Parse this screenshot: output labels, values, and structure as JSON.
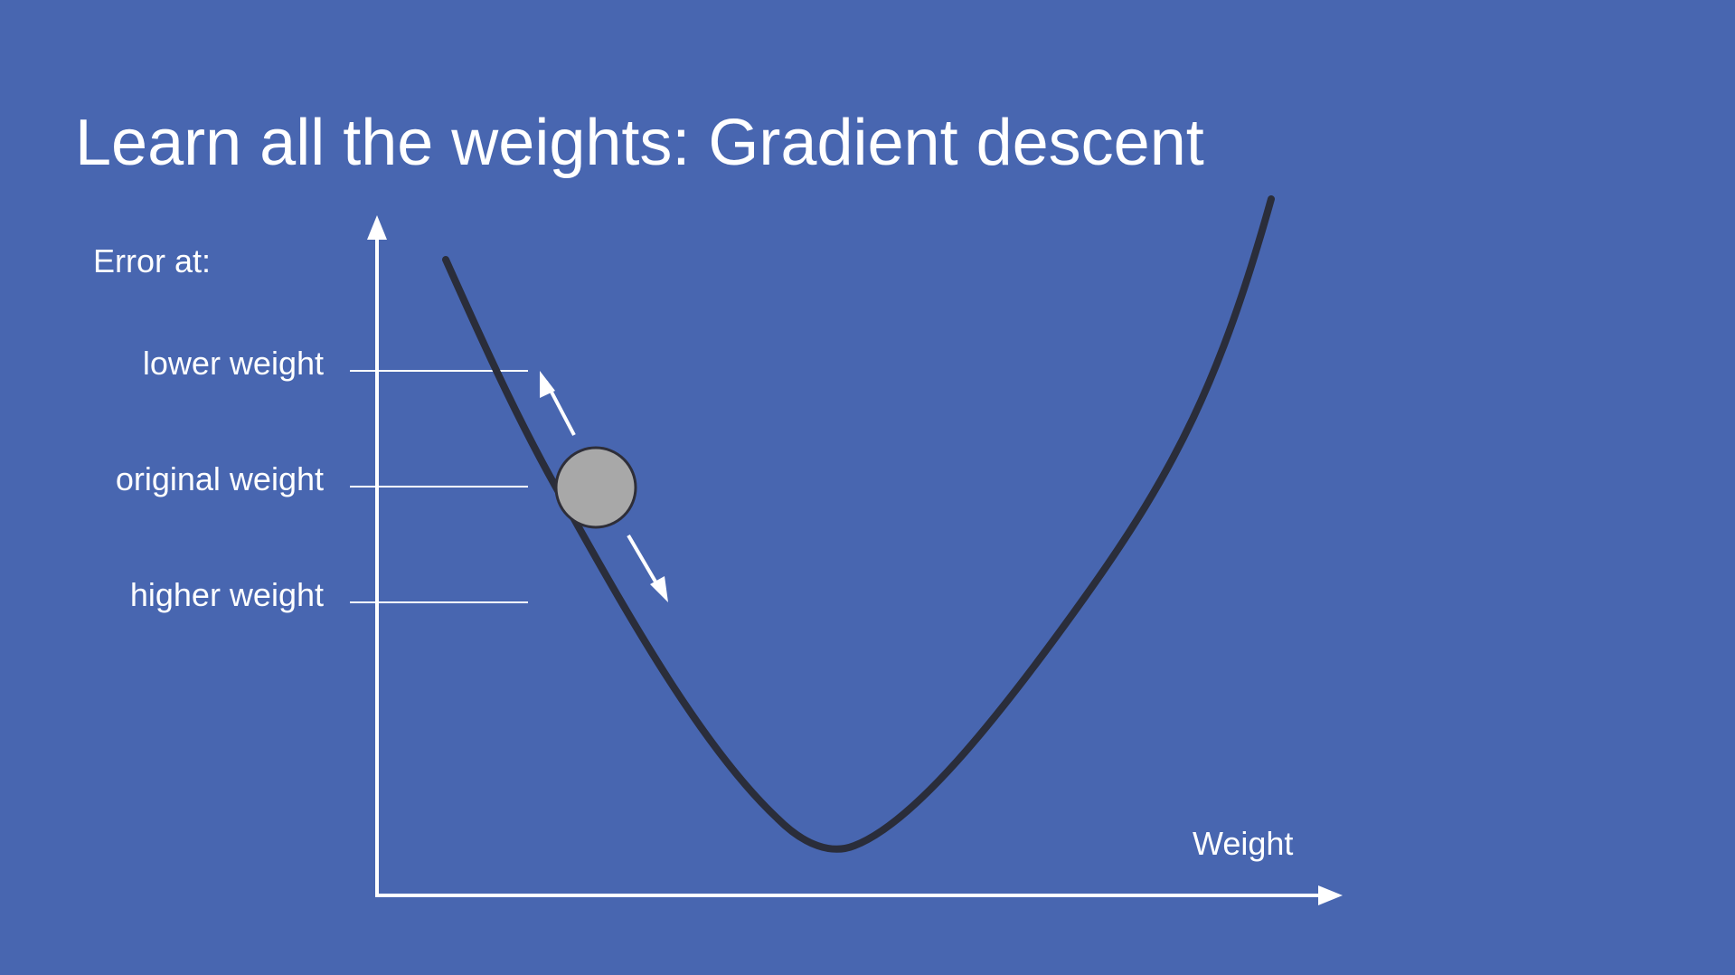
{
  "slide": {
    "title": "Learn all the weights: Gradient descent",
    "y_axis_heading": "Error at:",
    "levels": [
      {
        "key": "lower",
        "label": "lower weight"
      },
      {
        "key": "original",
        "label": "original weight"
      },
      {
        "key": "higher",
        "label": "higher weight"
      }
    ],
    "x_axis_label": "Weight"
  },
  "colors": {
    "background": "#4866b0",
    "text": "#ffffff",
    "curve": "#2a2d3a",
    "ball_fill": "#a8a8a8",
    "ball_stroke": "#2e2e38"
  }
}
